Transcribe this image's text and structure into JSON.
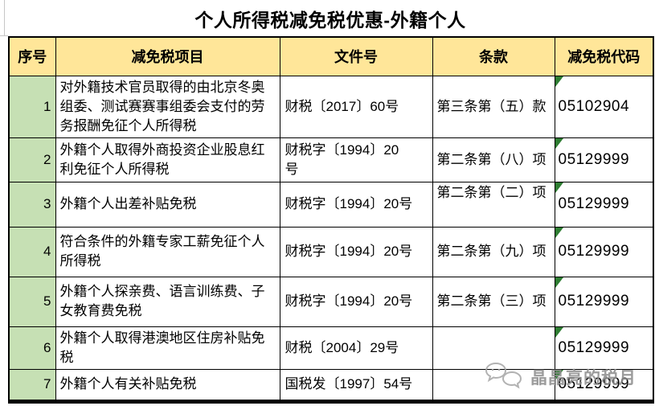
{
  "title": "个人所得税减免税优惠-外籍个人",
  "table": {
    "headers": [
      "序号",
      "减免税项目",
      "文件号",
      "条款",
      "减免税代码"
    ],
    "rows": [
      {
        "no": "1",
        "item": "对外籍技术官员取得的由北京冬奥组委、测试赛赛事组委会支付的劳务报酬免征个人所得税",
        "doc": "财税〔2017〕60号",
        "clause": "第三条第（五）款",
        "code": "05102904",
        "flag": true
      },
      {
        "no": "2",
        "item": "外籍个人取得外商投资企业股息红利免征个人所得税",
        "doc": "财税字〔1994〕20\n号",
        "clause": "第二条第（八）项",
        "code": "05129999",
        "flag": true
      },
      {
        "no": "3",
        "item": "外籍个人出差补贴免税",
        "doc": "财税字〔1994〕20号",
        "clause": "第二条第（二）项",
        "code": "05129999",
        "flag": true
      },
      {
        "no": "4",
        "item": "符合条件的外籍专家工薪免征个人所得税",
        "doc": "财税字〔1994〕20号",
        "clause": "第二条第（九）项",
        "code": "05129999",
        "flag": true
      },
      {
        "no": "5",
        "item": "外籍个人探亲费、语言训练费、子女教育费免税",
        "doc": "财税字〔1994〕20号",
        "clause": "第二条第（三）项",
        "code": "05129999",
        "flag": true
      },
      {
        "no": "6",
        "item": "外籍个人取得港澳地区住房补贴免税",
        "doc": "财税〔2004〕29号",
        "clause": "",
        "code": "05129999",
        "flag": true
      },
      {
        "no": "7",
        "item": "外籍个人有关补贴免税",
        "doc": "国税发〔1997〕54号",
        "clause": "",
        "code": "05129999",
        "flag": true
      }
    ]
  },
  "watermark": {
    "text": "晶晶亮的税月",
    "icon": "chat-bubbles-icon"
  },
  "colors": {
    "header_bg": "#FFE699",
    "index_bg": "#C6E0B4",
    "triangle_green": "#2E7D32",
    "border": "#000000",
    "watermark_gray": "#8F8F8F"
  }
}
